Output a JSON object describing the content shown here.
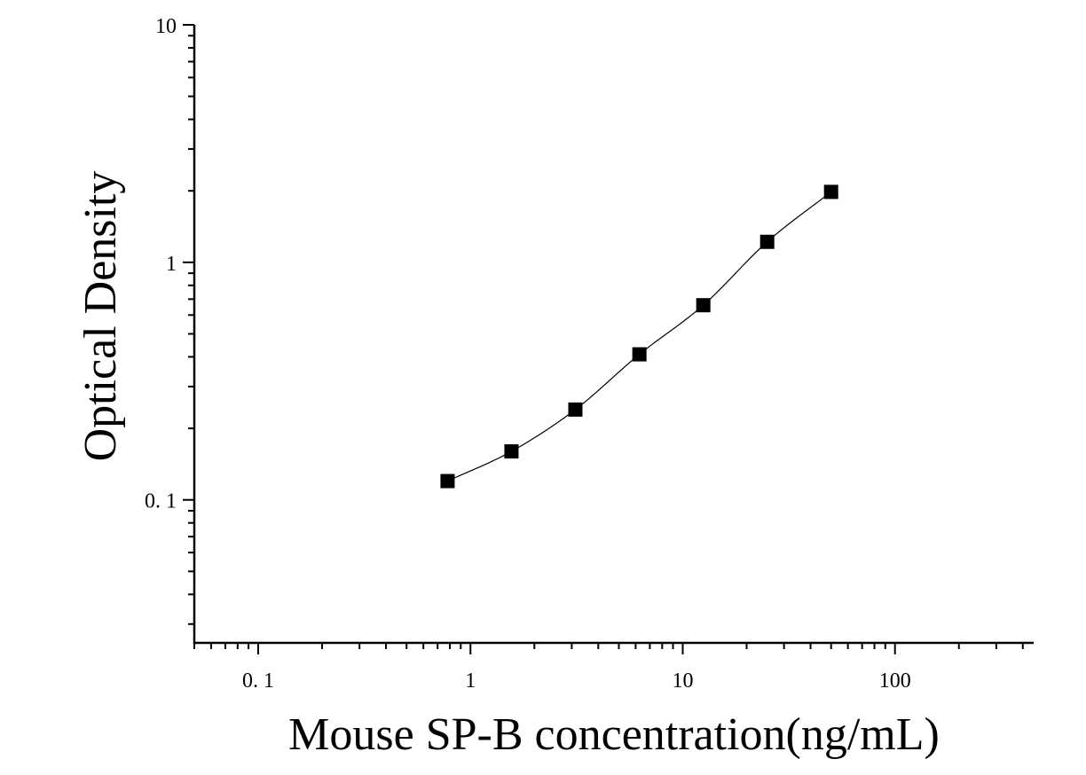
{
  "chart_data": {
    "type": "scatter",
    "xlabel": "Mouse SP-B concentration(ng/mL)",
    "ylabel": "Optical Density",
    "xscale": "log",
    "yscale": "log",
    "xlim": [
      0.05,
      450
    ],
    "ylim": [
      0.025,
      10
    ],
    "x_ticks": [
      {
        "value": 0.1,
        "label": "0. 1"
      },
      {
        "value": 1,
        "label": "1"
      },
      {
        "value": 10,
        "label": "10"
      },
      {
        "value": 100,
        "label": "100"
      }
    ],
    "y_ticks": [
      {
        "value": 0.1,
        "label": "0. 1"
      },
      {
        "value": 1,
        "label": "1"
      },
      {
        "value": 10,
        "label": "10"
      }
    ],
    "grid": false,
    "marker": "square",
    "fit_curve": true,
    "series": [
      {
        "x": [
          0.78,
          1.56,
          3.12,
          6.25,
          12.5,
          25,
          50
        ],
        "y": [
          0.12,
          0.16,
          0.24,
          0.41,
          0.66,
          1.22,
          1.98
        ]
      }
    ],
    "color": "#000000"
  }
}
